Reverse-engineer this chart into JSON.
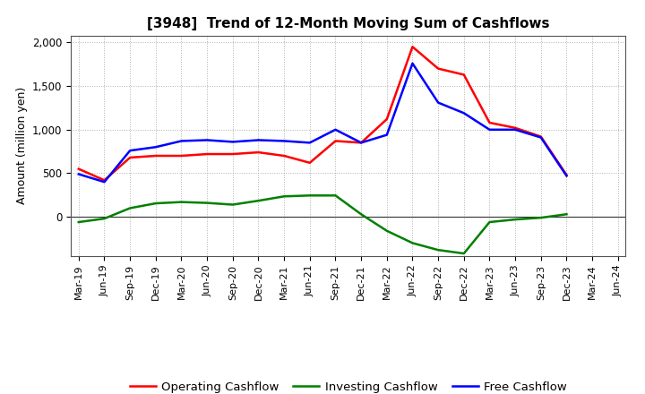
{
  "title": "[3948]  Trend of 12-Month Moving Sum of Cashflows",
  "ylabel": "Amount (million yen)",
  "background_color": "#ffffff",
  "grid_color": "#b0b0b0",
  "x_labels": [
    "Mar-19",
    "Jun-19",
    "Sep-19",
    "Dec-19",
    "Mar-20",
    "Jun-20",
    "Sep-20",
    "Dec-20",
    "Mar-21",
    "Jun-21",
    "Sep-21",
    "Dec-21",
    "Mar-22",
    "Jun-22",
    "Sep-22",
    "Dec-22",
    "Mar-23",
    "Jun-23",
    "Sep-23",
    "Dec-23",
    "Mar-24",
    "Jun-24"
  ],
  "operating": [
    550,
    420,
    680,
    700,
    700,
    720,
    720,
    740,
    700,
    620,
    870,
    850,
    1120,
    1950,
    1700,
    1630,
    1080,
    1020,
    920,
    480,
    null,
    null
  ],
  "investing": [
    -60,
    -20,
    100,
    155,
    170,
    160,
    140,
    185,
    235,
    245,
    245,
    30,
    -160,
    -300,
    -380,
    -420,
    -60,
    -30,
    -10,
    30,
    null,
    null
  ],
  "free": [
    490,
    400,
    760,
    800,
    870,
    880,
    860,
    880,
    870,
    850,
    1000,
    850,
    940,
    1760,
    1310,
    1190,
    1000,
    1000,
    910,
    470,
    null,
    null
  ],
  "ylim": [
    -450,
    2080
  ],
  "yticks": [
    0,
    500,
    1000,
    1500,
    2000
  ],
  "ytick_labels": [
    "0",
    "500",
    "1,000",
    "1,500",
    "2,000"
  ],
  "line_colors": {
    "operating": "#ff0000",
    "investing": "#008000",
    "free": "#0000ff"
  },
  "line_width": 1.8,
  "legend_labels": {
    "operating": "Operating Cashflow",
    "investing": "Investing Cashflow",
    "free": "Free Cashflow"
  },
  "title_fontsize": 11,
  "axis_fontsize": 9,
  "tick_fontsize": 8.5
}
